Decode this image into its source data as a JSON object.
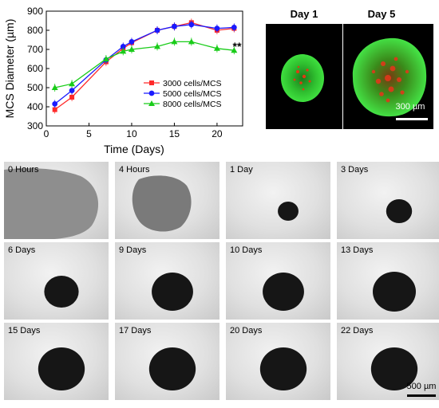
{
  "chart_data": {
    "type": "line",
    "title": "",
    "xlabel": "Time (Days)",
    "ylabel": "MCS Diameter (µm)",
    "xlim": [
      0,
      23
    ],
    "ylim": [
      300,
      900
    ],
    "xticks": [
      0,
      5,
      10,
      15,
      20
    ],
    "yticks": [
      300,
      400,
      500,
      600,
      700,
      800,
      900
    ],
    "legend_position": "bottom-right",
    "annotation": "**",
    "series": [
      {
        "name": "3000 cells/MCS",
        "color": "#ff2a2a",
        "marker": "square",
        "x": [
          1,
          3,
          7,
          9,
          10,
          13,
          15,
          17,
          20,
          22
        ],
        "y": [
          385,
          450,
          635,
          705,
          735,
          800,
          820,
          840,
          800,
          810
        ]
      },
      {
        "name": "5000 cells/MCS",
        "color": "#1a1aff",
        "marker": "circle",
        "x": [
          1,
          3,
          7,
          9,
          10,
          13,
          15,
          17,
          20,
          22
        ],
        "y": [
          415,
          485,
          645,
          715,
          740,
          800,
          820,
          830,
          810,
          815
        ]
      },
      {
        "name": "8000 cells/MCS",
        "color": "#19cc19",
        "marker": "triangle",
        "x": [
          1,
          3,
          7,
          9,
          10,
          13,
          15,
          17,
          20,
          22
        ],
        "y": [
          500,
          520,
          650,
          690,
          700,
          715,
          740,
          740,
          705,
          695
        ]
      }
    ]
  },
  "fluorescence": {
    "day1_label": "Day 1",
    "day5_label": "Day 5",
    "scale_bar_label": "300 µm",
    "colors": {
      "green": "#22cc22",
      "red": "#dd3311"
    }
  },
  "timelapse": {
    "tiles": [
      {
        "label": "0 Hours"
      },
      {
        "label": "4 Hours"
      },
      {
        "label": "1 Day"
      },
      {
        "label": "3 Days"
      },
      {
        "label": "6 Days"
      },
      {
        "label": "9 Days"
      },
      {
        "label": "10 Days"
      },
      {
        "label": "13 Days"
      },
      {
        "label": "15 Days"
      },
      {
        "label": "17 Days"
      },
      {
        "label": "20 Days"
      },
      {
        "label": "22 Days"
      }
    ],
    "scale_bar_label": "500 µm"
  }
}
